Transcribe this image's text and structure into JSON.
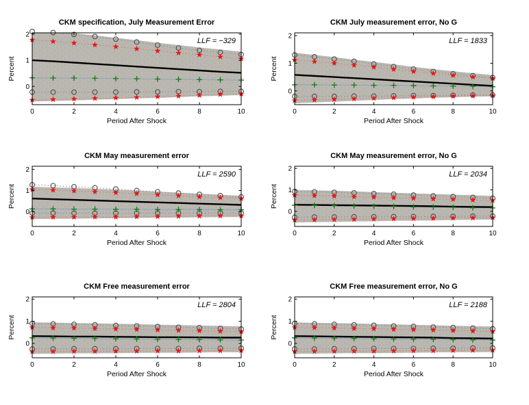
{
  "figure": {
    "background": "#ffffff",
    "layout": "2 columns x 3 rows of impulse-response plots"
  },
  "shared": {
    "xlabel": "Period After Shock",
    "ylabel": "Percent",
    "x_ticks": [
      0,
      2,
      4,
      6,
      8,
      10
    ],
    "y_ticks": [
      0,
      1,
      2
    ],
    "xlim": [
      0,
      10
    ],
    "grid": "off",
    "legend": "none"
  },
  "colors": {
    "band_fill": "#bab7ae",
    "speckle_blue": "#98a4d6",
    "speckle_pink": "#cfa5a0",
    "speckle_light": "#c7c4bb",
    "mean_line": "#000000",
    "star_marker": "#ea1414",
    "star_trace": "#cf7a72",
    "circle_marker": "#4c4c4c",
    "circle_trace": "#8a8a8a",
    "plus_marker": "#1d7a1d",
    "plus_line": "#8fa3b8",
    "axis": "#000000"
  },
  "chart_data": [
    {
      "type": "line",
      "title": "CKM specification, July Measurement Error",
      "llf_label": "LLF = −329",
      "x": [
        0,
        1,
        2,
        3,
        4,
        5,
        6,
        7,
        8,
        9,
        10
      ],
      "ylim": [
        -0.7,
        2.05
      ],
      "band_upper": [
        2.2,
        2.12,
        2.03,
        1.95,
        1.86,
        1.77,
        1.67,
        1.58,
        1.49,
        1.41,
        1.33
      ],
      "band_lower": [
        -0.58,
        -0.56,
        -0.54,
        -0.51,
        -0.49,
        -0.46,
        -0.44,
        -0.41,
        -0.38,
        -0.36,
        -0.33
      ],
      "mean_line": [
        1.0,
        0.96,
        0.91,
        0.86,
        0.81,
        0.76,
        0.71,
        0.66,
        0.61,
        0.56,
        0.52
      ],
      "plus_line": [
        0.33,
        0.32,
        0.32,
        0.31,
        0.3,
        0.29,
        0.28,
        0.27,
        0.26,
        0.25,
        0.24
      ],
      "stars_upper": [
        1.78,
        1.72,
        1.66,
        1.59,
        1.52,
        1.44,
        1.36,
        1.28,
        1.21,
        1.13,
        1.06
      ],
      "stars_lower": [
        -0.52,
        -0.5,
        -0.48,
        -0.46,
        -0.44,
        -0.42,
        -0.39,
        -0.37,
        -0.34,
        -0.31,
        -0.29
      ],
      "circles_upper": [
        2.1,
        2.06,
        1.99,
        1.91,
        1.81,
        1.7,
        1.58,
        1.47,
        1.38,
        1.3,
        1.22
      ],
      "circles_lower": [
        -0.22,
        -0.22,
        -0.22,
        -0.22,
        -0.22,
        -0.21,
        -0.21,
        -0.2,
        -0.2,
        -0.19,
        -0.19
      ]
    },
    {
      "type": "line",
      "title": "CKM July measurement error, No G",
      "llf_label": "LLF = 1833",
      "x": [
        0,
        1,
        2,
        3,
        4,
        5,
        6,
        7,
        8,
        9,
        10
      ],
      "ylim": [
        -0.5,
        2.1
      ],
      "band_upper": [
        1.38,
        1.3,
        1.22,
        1.13,
        1.05,
        0.96,
        0.87,
        0.79,
        0.71,
        0.64,
        0.57
      ],
      "band_lower": [
        -0.45,
        -0.42,
        -0.39,
        -0.36,
        -0.33,
        -0.3,
        -0.28,
        -0.25,
        -0.23,
        -0.21,
        -0.2
      ],
      "mean_line": [
        0.58,
        0.54,
        0.5,
        0.46,
        0.42,
        0.38,
        0.34,
        0.3,
        0.26,
        0.22,
        0.18
      ],
      "plus_line": [
        0.22,
        0.22,
        0.21,
        0.21,
        0.2,
        0.2,
        0.19,
        0.18,
        0.17,
        0.16,
        0.15
      ],
      "stars_upper": [
        1.12,
        1.06,
        1.0,
        0.93,
        0.86,
        0.78,
        0.7,
        0.63,
        0.56,
        0.5,
        0.45
      ],
      "stars_lower": [
        -0.35,
        -0.33,
        -0.31,
        -0.29,
        -0.27,
        -0.25,
        -0.23,
        -0.21,
        -0.19,
        -0.18,
        -0.17
      ],
      "circles_upper": [
        1.3,
        1.23,
        1.15,
        1.07,
        0.97,
        0.88,
        0.79,
        0.7,
        0.62,
        0.55,
        0.48
      ],
      "circles_lower": [
        -0.2,
        -0.2,
        -0.2,
        -0.19,
        -0.19,
        -0.18,
        -0.17,
        -0.17,
        -0.16,
        -0.15,
        -0.15
      ]
    },
    {
      "type": "line",
      "title": "CKM May measurement error",
      "llf_label": "LLF = 2590",
      "x": [
        0,
        1,
        2,
        3,
        4,
        5,
        6,
        7,
        8,
        9,
        10
      ],
      "ylim": [
        -0.7,
        2.15
      ],
      "band_upper": [
        1.18,
        1.15,
        1.12,
        1.08,
        1.04,
        1.0,
        0.95,
        0.9,
        0.85,
        0.8,
        0.75
      ],
      "band_lower": [
        -0.35,
        -0.34,
        -0.33,
        -0.32,
        -0.31,
        -0.3,
        -0.29,
        -0.28,
        -0.27,
        -0.26,
        -0.25
      ],
      "mean_line": [
        0.62,
        0.59,
        0.56,
        0.53,
        0.5,
        0.47,
        0.44,
        0.41,
        0.38,
        0.35,
        0.32
      ],
      "plus_line": [
        0.13,
        0.13,
        0.12,
        0.12,
        0.11,
        0.11,
        0.1,
        0.1,
        0.1,
        0.09,
        0.09
      ],
      "stars_upper": [
        1.05,
        1.02,
        0.98,
        0.94,
        0.9,
        0.85,
        0.8,
        0.75,
        0.7,
        0.66,
        0.62
      ],
      "stars_lower": [
        -0.27,
        -0.26,
        -0.26,
        -0.25,
        -0.25,
        -0.24,
        -0.23,
        -0.22,
        -0.21,
        -0.2,
        -0.2
      ],
      "circles_upper": [
        1.27,
        1.23,
        1.18,
        1.13,
        1.07,
        1.0,
        0.94,
        0.88,
        0.82,
        0.76,
        0.7
      ],
      "circles_lower": [
        -0.07,
        -0.07,
        -0.07,
        -0.07,
        -0.07,
        -0.07,
        -0.06,
        -0.06,
        -0.06,
        -0.06,
        -0.06
      ]
    },
    {
      "type": "line",
      "title": "CKM May measurement error, No G",
      "llf_label": "LLF = 2034",
      "x": [
        0,
        1,
        2,
        3,
        4,
        5,
        6,
        7,
        8,
        9,
        10
      ],
      "ylim": [
        -0.7,
        2.1
      ],
      "band_upper": [
        1.0,
        0.98,
        0.96,
        0.93,
        0.9,
        0.87,
        0.84,
        0.81,
        0.78,
        0.75,
        0.72
      ],
      "band_lower": [
        -0.52,
        -0.5,
        -0.49,
        -0.47,
        -0.46,
        -0.44,
        -0.43,
        -0.42,
        -0.4,
        -0.39,
        -0.38
      ],
      "mean_line": [
        0.31,
        0.3,
        0.29,
        0.28,
        0.27,
        0.26,
        0.25,
        0.24,
        0.22,
        0.21,
        0.2
      ],
      "plus_line": [
        0.29,
        0.28,
        0.27,
        0.25,
        0.24,
        0.23,
        0.21,
        0.2,
        0.19,
        0.17,
        0.16
      ],
      "stars_upper": [
        0.75,
        0.73,
        0.71,
        0.68,
        0.66,
        0.63,
        0.61,
        0.58,
        0.56,
        0.53,
        0.51
      ],
      "stars_lower": [
        -0.4,
        -0.39,
        -0.38,
        -0.37,
        -0.35,
        -0.34,
        -0.33,
        -0.32,
        -0.31,
        -0.3,
        -0.29
      ],
      "circles_upper": [
        0.93,
        0.91,
        0.89,
        0.86,
        0.83,
        0.8,
        0.76,
        0.72,
        0.69,
        0.65,
        0.61
      ],
      "circles_lower": [
        -0.27,
        -0.26,
        -0.26,
        -0.25,
        -0.25,
        -0.24,
        -0.24,
        -0.23,
        -0.23,
        -0.22,
        -0.22
      ]
    },
    {
      "type": "line",
      "title": "CKM Free measurement error",
      "llf_label": "LLF = 2804",
      "x": [
        0,
        1,
        2,
        3,
        4,
        5,
        6,
        7,
        8,
        9,
        10
      ],
      "ylim": [
        -0.65,
        2.1
      ],
      "band_upper": [
        0.95,
        0.94,
        0.92,
        0.91,
        0.89,
        0.87,
        0.85,
        0.83,
        0.81,
        0.79,
        0.77
      ],
      "band_lower": [
        -0.47,
        -0.46,
        -0.45,
        -0.45,
        -0.44,
        -0.43,
        -0.42,
        -0.42,
        -0.41,
        -0.4,
        -0.4
      ],
      "mean_line": [
        0.33,
        0.32,
        0.31,
        0.31,
        0.3,
        0.29,
        0.28,
        0.28,
        0.27,
        0.26,
        0.26
      ],
      "plus_line": [
        0.25,
        0.24,
        0.23,
        0.22,
        0.21,
        0.2,
        0.19,
        0.18,
        0.17,
        0.16,
        0.15
      ],
      "stars_upper": [
        0.72,
        0.7,
        0.69,
        0.67,
        0.65,
        0.63,
        0.61,
        0.59,
        0.57,
        0.55,
        0.53
      ],
      "stars_lower": [
        -0.37,
        -0.37,
        -0.36,
        -0.36,
        -0.35,
        -0.35,
        -0.34,
        -0.34,
        -0.33,
        -0.33,
        -0.32
      ],
      "circles_upper": [
        0.9,
        0.88,
        0.86,
        0.84,
        0.81,
        0.79,
        0.76,
        0.73,
        0.71,
        0.68,
        0.65
      ],
      "circles_lower": [
        -0.25,
        -0.25,
        -0.24,
        -0.24,
        -0.24,
        -0.23,
        -0.23,
        -0.23,
        -0.22,
        -0.22,
        -0.22
      ]
    },
    {
      "type": "line",
      "title": "CKM Free measurement error, No G",
      "llf_label": "LLF = 2188",
      "x": [
        0,
        1,
        2,
        3,
        4,
        5,
        6,
        7,
        8,
        9,
        10
      ],
      "ylim": [
        -0.65,
        2.1
      ],
      "band_upper": [
        0.95,
        0.93,
        0.92,
        0.9,
        0.88,
        0.86,
        0.84,
        0.82,
        0.8,
        0.78,
        0.76
      ],
      "band_lower": [
        -0.47,
        -0.46,
        -0.45,
        -0.44,
        -0.44,
        -0.43,
        -0.42,
        -0.41,
        -0.4,
        -0.4,
        -0.39
      ],
      "mean_line": [
        0.33,
        0.32,
        0.31,
        0.3,
        0.29,
        0.28,
        0.27,
        0.26,
        0.24,
        0.23,
        0.22
      ],
      "plus_line": [
        0.25,
        0.24,
        0.23,
        0.22,
        0.21,
        0.2,
        0.19,
        0.18,
        0.17,
        0.16,
        0.15
      ],
      "stars_upper": [
        0.72,
        0.71,
        0.69,
        0.67,
        0.66,
        0.64,
        0.62,
        0.6,
        0.58,
        0.56,
        0.54
      ],
      "stars_lower": [
        -0.37,
        -0.36,
        -0.36,
        -0.35,
        -0.35,
        -0.34,
        -0.33,
        -0.33,
        -0.32,
        -0.31,
        -0.31
      ],
      "circles_upper": [
        0.9,
        0.88,
        0.86,
        0.84,
        0.82,
        0.79,
        0.77,
        0.74,
        0.72,
        0.69,
        0.66
      ],
      "circles_lower": [
        -0.25,
        -0.25,
        -0.24,
        -0.24,
        -0.23,
        -0.23,
        -0.23,
        -0.22,
        -0.22,
        -0.21,
        -0.21
      ]
    }
  ]
}
